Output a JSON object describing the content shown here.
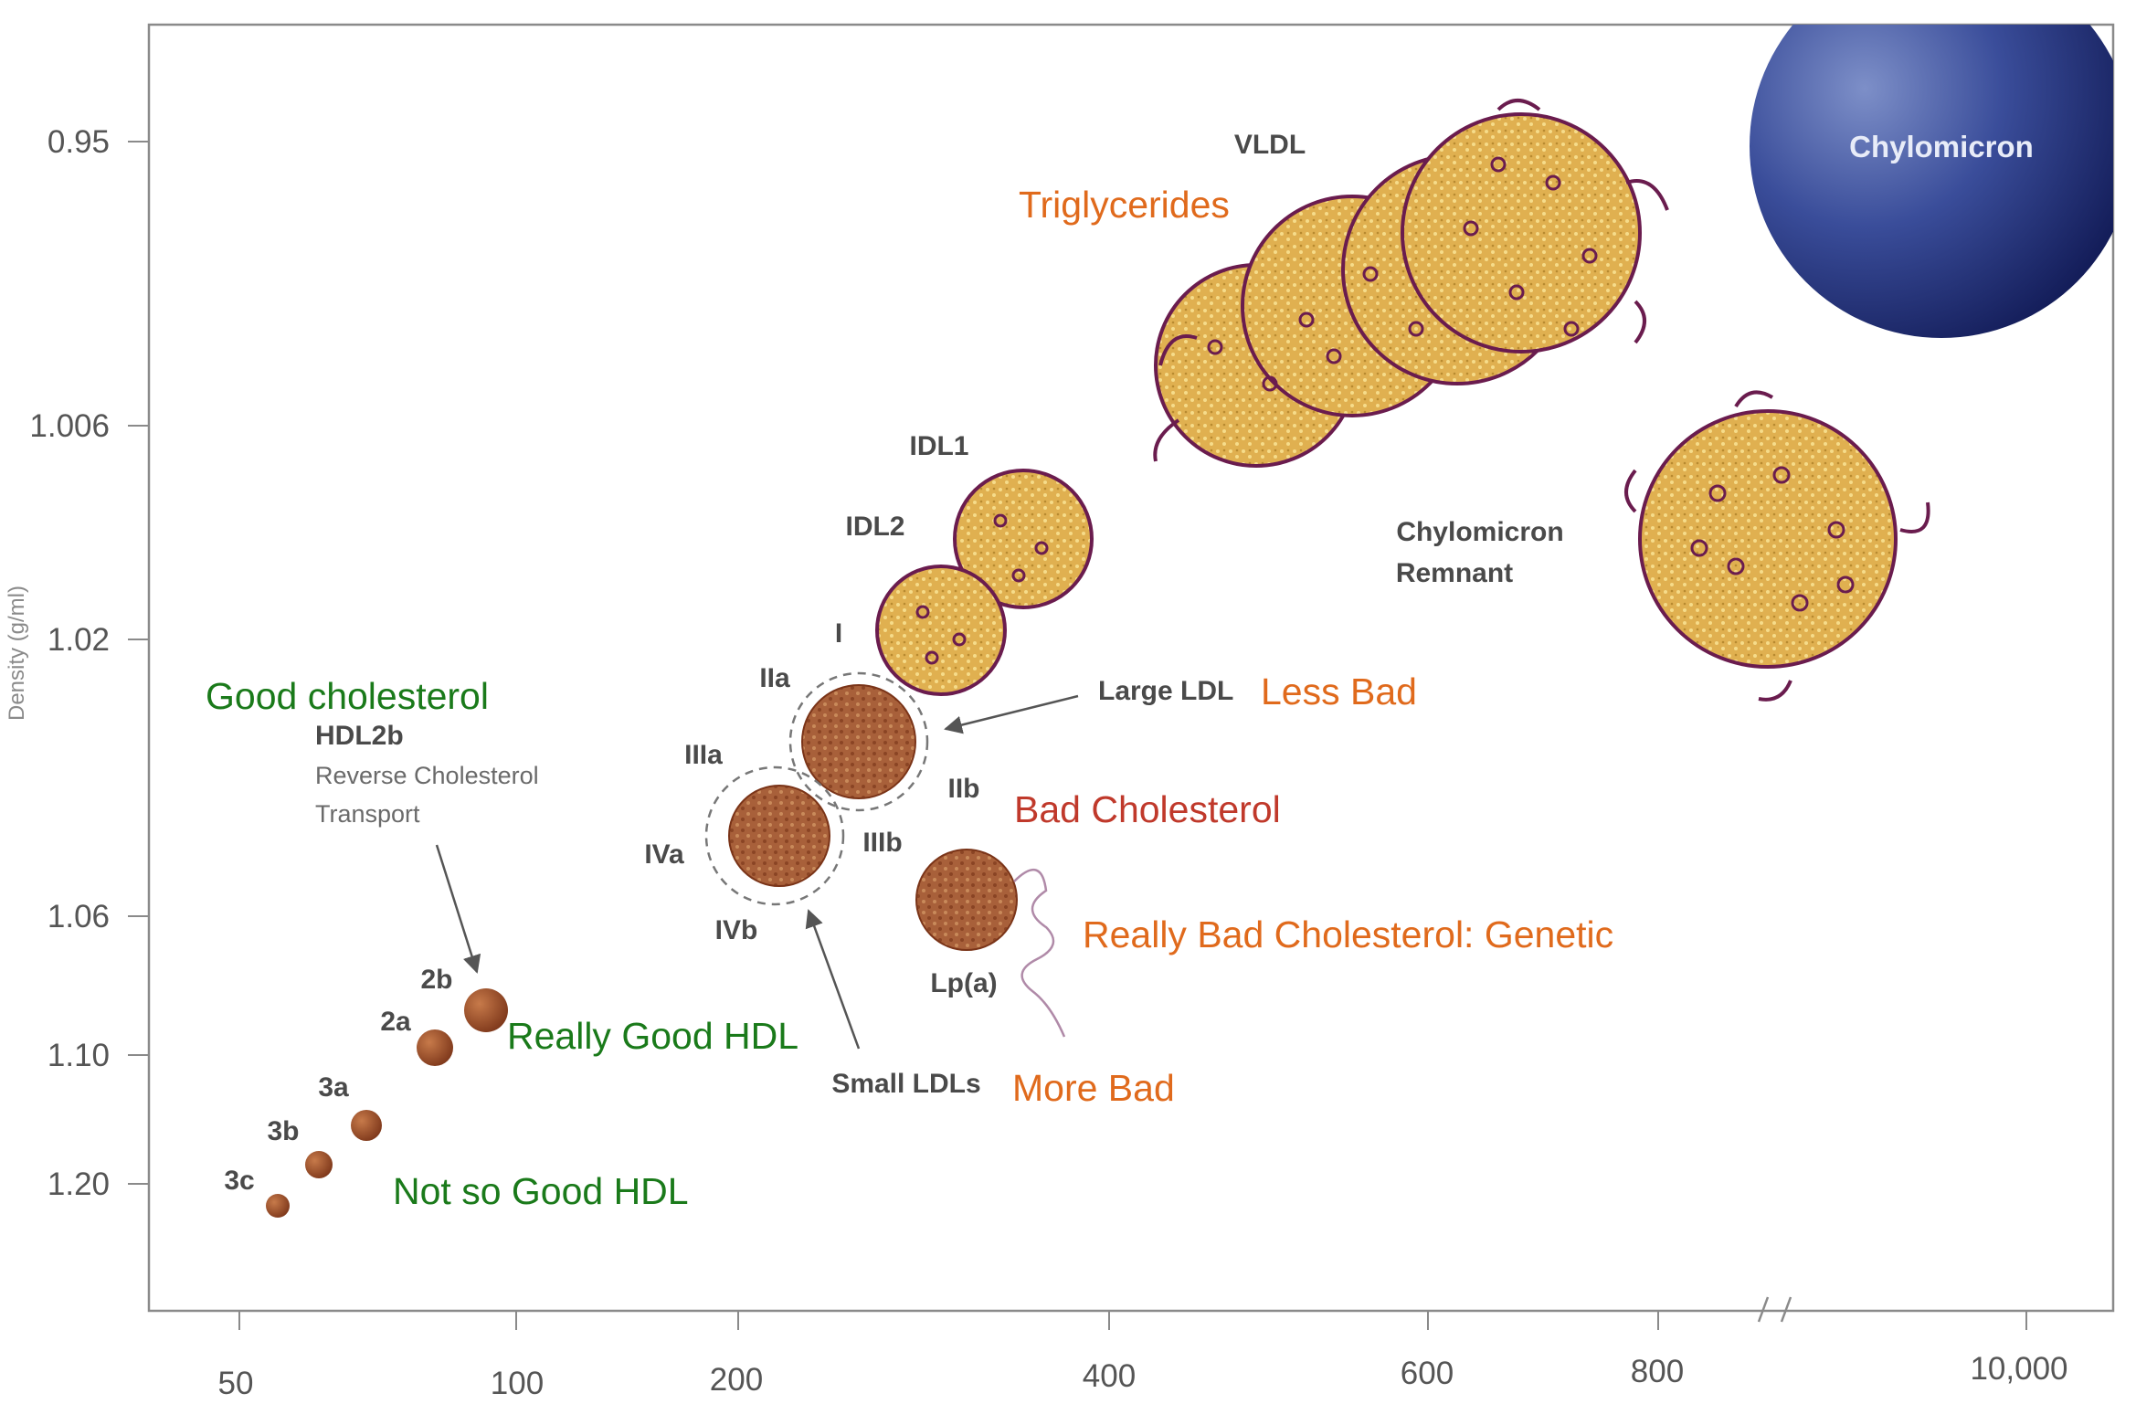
{
  "axes": {
    "ylabel": "Density (g/ml)",
    "y_ticks": [
      "0.95",
      "1.006",
      "1.02",
      "1.06",
      "1.10",
      "1.20"
    ],
    "x_ticks": [
      "50",
      "100",
      "200",
      "400",
      "600",
      "800",
      "10,000"
    ]
  },
  "particles": {
    "chylomicron": "Chylomicron",
    "vldl": "VLDL",
    "chylomicron_remnant": [
      "Chylomicron",
      "Remnant"
    ],
    "idl1": "IDL1",
    "idl2": "IDL2",
    "i": "I",
    "iia": "IIa",
    "iib": "IIb",
    "iiia": "IIIa",
    "iiib": "IIIb",
    "iva": "IVa",
    "ivb": "IVb",
    "lpa": "Lp(a)",
    "large_ldl": "Large LDL",
    "small_ldls": "Small LDLs",
    "hdl2b": "HDL2b",
    "hdl_note": [
      "Reverse Cholesterol",
      "Transport"
    ],
    "h2b": "2b",
    "h2a": "2a",
    "h3a": "3a",
    "h3b": "3b",
    "h3c": "3c"
  },
  "annotations": {
    "triglycerides": "Triglycerides",
    "less_bad": "Less Bad",
    "bad_cholesterol": "Bad Cholesterol",
    "really_bad": "Really Bad Cholesterol:  Genetic",
    "more_bad": "More Bad",
    "good_cholesterol": "Good cholesterol",
    "really_good_hdl": "Really Good HDL",
    "not_so_good_hdl": "Not so Good HDL"
  },
  "colors": {
    "green": "#1a7a1a",
    "orange": "#e06a1c",
    "red": "#c0392b",
    "particle_fill": "#e0b050",
    "particle_outline": "#6a1c4e",
    "chylomicron": "#1e2b78",
    "small_particle": "#9a4a2a"
  }
}
